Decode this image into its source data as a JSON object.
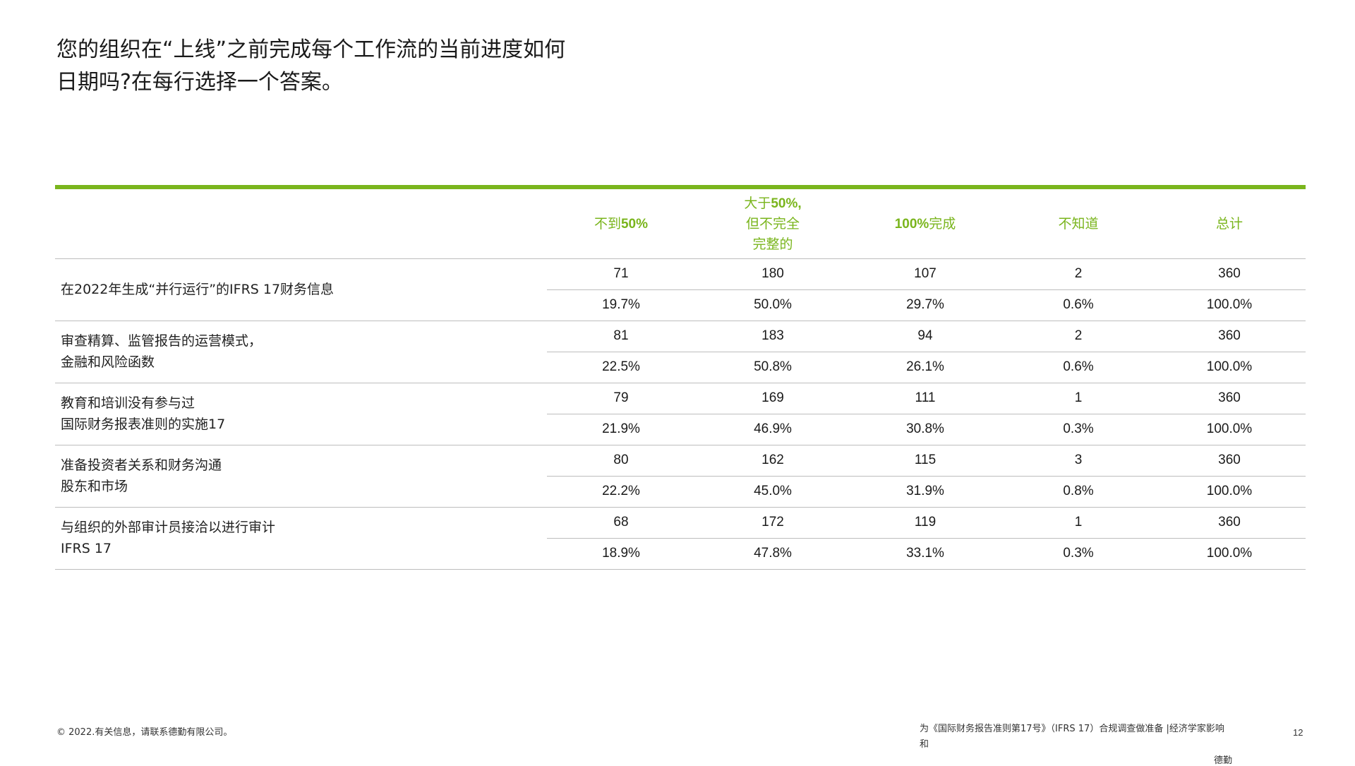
{
  "title": {
    "line1": "您的组织在“上线”之前完成每个工作流的当前进度如何",
    "line2": "日期吗?在每行选择一个答案。"
  },
  "colors": {
    "accent": "#7ab51d",
    "text": "#1a1a1a",
    "rule": "#bdbdbd"
  },
  "table": {
    "columns": [
      {
        "parts": [
          {
            "t": "不到",
            "b": false
          },
          {
            "t": "50%",
            "b": true
          }
        ]
      },
      {
        "parts": [
          {
            "t": "大于",
            "b": false
          },
          {
            "t": "50%,",
            "b": true
          },
          {
            "br": true
          },
          {
            "t": "但不完全",
            "b": false
          },
          {
            "br": true
          },
          {
            "t": "完整的",
            "b": false
          }
        ]
      },
      {
        "parts": [
          {
            "t": "100%",
            "b": true
          },
          {
            "t": "完成",
            "b": false
          }
        ]
      },
      {
        "parts": [
          {
            "t": "不知道",
            "b": false
          }
        ]
      },
      {
        "parts": [
          {
            "t": "总计",
            "b": false
          }
        ]
      }
    ],
    "rows": [
      {
        "label": [
          "在2022年生成“并行运行”的IFRS 17财务信息"
        ],
        "counts": [
          "71",
          "180",
          "107",
          "2",
          "360"
        ],
        "percents": [
          "19.7%",
          "50.0%",
          "29.7%",
          "0.6%",
          "100.0%"
        ]
      },
      {
        "label": [
          "审查精算、监管报告的运营模式，",
          "金融和风险函数"
        ],
        "counts": [
          "81",
          "183",
          "94",
          "2",
          "360"
        ],
        "percents": [
          "22.5%",
          "50.8%",
          "26.1%",
          "0.6%",
          "100.0%"
        ]
      },
      {
        "label": [
          "教育和培训没有参与过",
          "国际财务报表准则的实施17"
        ],
        "counts": [
          "79",
          "169",
          "111",
          "1",
          "360"
        ],
        "percents": [
          "21.9%",
          "46.9%",
          "30.8%",
          "0.3%",
          "100.0%"
        ]
      },
      {
        "label": [
          "准备投资者关系和财务沟通",
          "股东和市场"
        ],
        "counts": [
          "80",
          "162",
          "115",
          "3",
          "360"
        ],
        "percents": [
          "22.2%",
          "45.0%",
          "31.9%",
          "0.8%",
          "100.0%"
        ]
      },
      {
        "label": [
          "与组织的外部审计员接洽以进行审计",
          "IFRS 17"
        ],
        "counts": [
          "68",
          "172",
          "119",
          "1",
          "360"
        ],
        "percents": [
          "18.9%",
          "47.8%",
          "33.1%",
          "0.3%",
          "100.0%"
        ]
      }
    ]
  },
  "footer": {
    "copyright": "© 2022.有关信息，请联系德勤有限公司。",
    "report_line1": "为《国际财务报告准则第17号》（IFRS 17）合规调查做准备 |经济学家影响",
    "report_line2": "和",
    "brand": "德勤",
    "page_number": "12"
  }
}
